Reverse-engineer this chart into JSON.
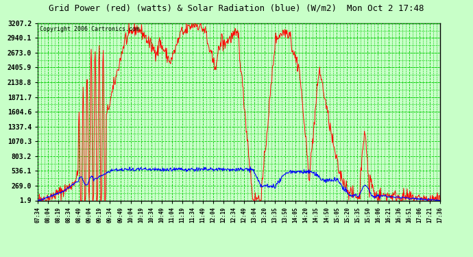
{
  "title": "Grid Power (red) (watts) & Solar Radiation (blue) (W/m2)  Mon Oct 2 17:48",
  "copyright": "Copyright 2006 Cartronics.com",
  "yticks": [
    1.9,
    269.0,
    536.1,
    803.2,
    1070.3,
    1337.4,
    1604.6,
    1871.7,
    2138.8,
    2405.9,
    2673.0,
    2940.1,
    3207.2
  ],
  "ymin": 1.9,
  "ymax": 3207.2,
  "bg_color": "#c8ffc8",
  "grid_color": "#00cc00",
  "red_color": "#ff0000",
  "blue_color": "#0000ff",
  "title_fontsize": 9,
  "copyright_fontsize": 6,
  "tick_fontsize": 7,
  "xtick_labels": [
    "07:34",
    "08:04",
    "08:19",
    "08:34",
    "08:49",
    "09:04",
    "09:19",
    "09:34",
    "09:49",
    "10:04",
    "10:19",
    "10:34",
    "10:49",
    "11:04",
    "11:19",
    "11:34",
    "11:49",
    "12:04",
    "12:19",
    "12:34",
    "12:49",
    "13:04",
    "13:20",
    "13:35",
    "13:50",
    "14:05",
    "14:20",
    "14:35",
    "14:50",
    "15:05",
    "15:20",
    "15:35",
    "15:50",
    "16:06",
    "16:21",
    "16:36",
    "16:51",
    "17:06",
    "17:21",
    "17:36"
  ]
}
